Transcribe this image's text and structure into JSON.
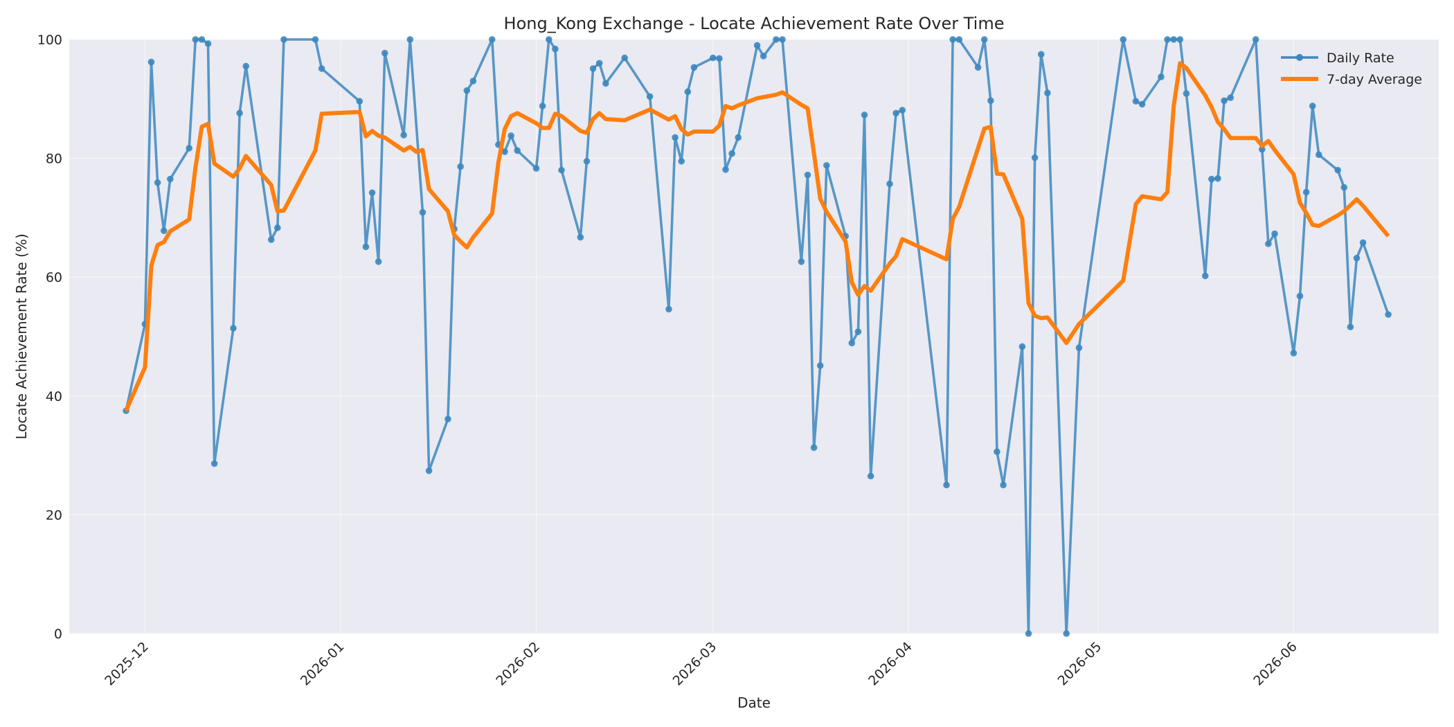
{
  "chart_data": {
    "type": "line",
    "title": "Hong_Kong Exchange - Locate Achievement Rate Over Time",
    "xlabel": "Date",
    "ylabel": "Locate Achievement Rate (%)",
    "ylim": [
      0,
      100
    ],
    "xlim": [
      "2025-11-19",
      "2026-06-24"
    ],
    "x_ticks": [
      {
        "date": "2025-12-01",
        "label": "2025-12"
      },
      {
        "date": "2026-01-01",
        "label": "2026-01"
      },
      {
        "date": "2026-02-01",
        "label": "2026-02"
      },
      {
        "date": "2026-03-01",
        "label": "2026-03"
      },
      {
        "date": "2026-04-01",
        "label": "2026-04"
      },
      {
        "date": "2026-05-01",
        "label": "2026-05"
      },
      {
        "date": "2026-06-01",
        "label": "2026-06"
      }
    ],
    "y_ticks": [
      0,
      20,
      40,
      60,
      80,
      100
    ],
    "grid": true,
    "legend_position": "top-right",
    "series": [
      {
        "name": "Daily Rate",
        "color": "#3c87be",
        "style": "line-markers",
        "points": [
          [
            "2025-11-28",
            37.5
          ],
          [
            "2025-12-01",
            52.1
          ],
          [
            "2025-12-02",
            96.2
          ],
          [
            "2025-12-03",
            75.9
          ],
          [
            "2025-12-04",
            67.8
          ],
          [
            "2025-12-05",
            76.5
          ],
          [
            "2025-12-08",
            81.7
          ],
          [
            "2025-12-09",
            100
          ],
          [
            "2025-12-10",
            100
          ],
          [
            "2025-12-11",
            99.3
          ],
          [
            "2025-12-12",
            28.6
          ],
          [
            "2025-12-15",
            51.4
          ],
          [
            "2025-12-16",
            87.6
          ],
          [
            "2025-12-17",
            95.5
          ],
          [
            "2025-12-21",
            66.3
          ],
          [
            "2025-12-22",
            68.3
          ],
          [
            "2025-12-23",
            100
          ],
          [
            "2025-12-28",
            100
          ],
          [
            "2025-12-29",
            95.1
          ],
          [
            "2026-01-04",
            89.6
          ],
          [
            "2026-01-05",
            65.1
          ],
          [
            "2026-01-06",
            74.2
          ],
          [
            "2026-01-07",
            62.6
          ],
          [
            "2026-01-08",
            97.7
          ],
          [
            "2026-01-11",
            83.9
          ],
          [
            "2026-01-12",
            100
          ],
          [
            "2026-01-14",
            70.9
          ],
          [
            "2026-01-15",
            27.4
          ],
          [
            "2026-01-18",
            36.1
          ],
          [
            "2026-01-19",
            68.1
          ],
          [
            "2026-01-20",
            78.6
          ],
          [
            "2026-01-21",
            91.4
          ],
          [
            "2026-01-22",
            93.0
          ],
          [
            "2026-01-25",
            100
          ],
          [
            "2026-01-26",
            82.3
          ],
          [
            "2026-01-27",
            81.1
          ],
          [
            "2026-01-28",
            83.8
          ],
          [
            "2026-01-29",
            81.3
          ],
          [
            "2026-02-01",
            78.3
          ],
          [
            "2026-02-02",
            88.8
          ],
          [
            "2026-02-03",
            100
          ],
          [
            "2026-02-04",
            98.4
          ],
          [
            "2026-02-05",
            78.0
          ],
          [
            "2026-02-08",
            66.7
          ],
          [
            "2026-02-09",
            79.5
          ],
          [
            "2026-02-10",
            95.1
          ],
          [
            "2026-02-11",
            96.0
          ],
          [
            "2026-02-12",
            92.6
          ],
          [
            "2026-02-15",
            96.9
          ],
          [
            "2026-02-19",
            90.4
          ],
          [
            "2026-02-22",
            54.6
          ],
          [
            "2026-02-23",
            83.5
          ],
          [
            "2026-02-24",
            79.5
          ],
          [
            "2026-02-25",
            91.2
          ],
          [
            "2026-02-26",
            95.3
          ],
          [
            "2026-03-01",
            96.9
          ],
          [
            "2026-03-02",
            96.8
          ],
          [
            "2026-03-03",
            78.1
          ],
          [
            "2026-03-04",
            80.8
          ],
          [
            "2026-03-05",
            83.5
          ],
          [
            "2026-03-08",
            99.0
          ],
          [
            "2026-03-09",
            97.2
          ],
          [
            "2026-03-11",
            100
          ],
          [
            "2026-03-12",
            100
          ],
          [
            "2026-03-15",
            62.6
          ],
          [
            "2026-03-16",
            77.2
          ],
          [
            "2026-03-17",
            31.3
          ],
          [
            "2026-03-18",
            45.1
          ],
          [
            "2026-03-19",
            78.8
          ],
          [
            "2026-03-22",
            66.9
          ],
          [
            "2026-03-23",
            48.9
          ],
          [
            "2026-03-24",
            50.8
          ],
          [
            "2026-03-25",
            87.3
          ],
          [
            "2026-03-26",
            26.5
          ],
          [
            "2026-03-29",
            75.7
          ],
          [
            "2026-03-30",
            87.6
          ],
          [
            "2026-03-31",
            88.1
          ],
          [
            "2026-04-07",
            25.0
          ],
          [
            "2026-04-08",
            100
          ],
          [
            "2026-04-09",
            100
          ],
          [
            "2026-04-12",
            95.3
          ],
          [
            "2026-04-13",
            100
          ],
          [
            "2026-04-14",
            89.7
          ],
          [
            "2026-04-15",
            30.6
          ],
          [
            "2026-04-16",
            25.0
          ],
          [
            "2026-04-19",
            48.3
          ],
          [
            "2026-04-20",
            0
          ],
          [
            "2026-04-21",
            80.1
          ],
          [
            "2026-04-22",
            97.5
          ],
          [
            "2026-04-23",
            91.0
          ],
          [
            "2026-04-26",
            0
          ],
          [
            "2026-04-28",
            48.1
          ],
          [
            "2026-05-05",
            100
          ],
          [
            "2026-05-07",
            89.6
          ],
          [
            "2026-05-08",
            89.1
          ],
          [
            "2026-05-11",
            93.7
          ],
          [
            "2026-05-12",
            100
          ],
          [
            "2026-05-13",
            100
          ],
          [
            "2026-05-14",
            100
          ],
          [
            "2026-05-15",
            90.9
          ],
          [
            "2026-05-18",
            60.2
          ],
          [
            "2026-05-19",
            76.5
          ],
          [
            "2026-05-20",
            76.6
          ],
          [
            "2026-05-21",
            89.7
          ],
          [
            "2026-05-22",
            90.2
          ],
          [
            "2026-05-26",
            100
          ],
          [
            "2026-05-27",
            81.5
          ],
          [
            "2026-05-28",
            65.6
          ],
          [
            "2026-05-29",
            67.3
          ],
          [
            "2026-06-01",
            47.2
          ],
          [
            "2026-06-02",
            56.8
          ],
          [
            "2026-06-03",
            74.3
          ],
          [
            "2026-06-04",
            88.8
          ],
          [
            "2026-06-05",
            80.6
          ],
          [
            "2026-06-08",
            78.0
          ],
          [
            "2026-06-09",
            75.1
          ],
          [
            "2026-06-10",
            51.6
          ],
          [
            "2026-06-11",
            63.2
          ],
          [
            "2026-06-12",
            65.8
          ],
          [
            "2026-06-16",
            53.7
          ]
        ]
      },
      {
        "name": "7-day Average",
        "color": "#ff7f0e",
        "style": "line",
        "points": [
          [
            "2025-11-28",
            37.5
          ],
          [
            "2025-12-01",
            44.8
          ],
          [
            "2025-12-02",
            61.9
          ],
          [
            "2025-12-03",
            65.4
          ],
          [
            "2025-12-04",
            65.9
          ],
          [
            "2025-12-05",
            67.7
          ],
          [
            "2025-12-08",
            69.7
          ],
          [
            "2025-12-09",
            78.4
          ],
          [
            "2025-12-10",
            85.3
          ],
          [
            "2025-12-11",
            85.8
          ],
          [
            "2025-12-12",
            79.1
          ],
          [
            "2025-12-15",
            76.9
          ],
          [
            "2025-12-16",
            78.3
          ],
          [
            "2025-12-17",
            80.4
          ],
          [
            "2025-12-21",
            75.5
          ],
          [
            "2025-12-22",
            71.1
          ],
          [
            "2025-12-23",
            71.2
          ],
          [
            "2025-12-28",
            81.3
          ],
          [
            "2025-12-29",
            87.5
          ],
          [
            "2026-01-04",
            87.8
          ],
          [
            "2026-01-05",
            83.7
          ],
          [
            "2026-01-06",
            84.6
          ],
          [
            "2026-01-07",
            83.8
          ],
          [
            "2026-01-08",
            83.5
          ],
          [
            "2026-01-11",
            81.3
          ],
          [
            "2026-01-12",
            81.9
          ],
          [
            "2026-01-13",
            81.1
          ],
          [
            "2026-01-14",
            81.4
          ],
          [
            "2026-01-15",
            74.8
          ],
          [
            "2026-01-18",
            71.1
          ],
          [
            "2026-01-19",
            67.1
          ],
          [
            "2026-01-20",
            66.0
          ],
          [
            "2026-01-21",
            65.0
          ],
          [
            "2026-01-22",
            66.7
          ],
          [
            "2026-01-25",
            70.7
          ],
          [
            "2026-01-26",
            79.3
          ],
          [
            "2026-01-27",
            84.9
          ],
          [
            "2026-01-28",
            87.1
          ],
          [
            "2026-01-29",
            87.6
          ],
          [
            "2026-02-01",
            85.9
          ],
          [
            "2026-02-02",
            85.1
          ],
          [
            "2026-02-03",
            85.1
          ],
          [
            "2026-02-04",
            87.5
          ],
          [
            "2026-02-05",
            87.1
          ],
          [
            "2026-02-08",
            84.6
          ],
          [
            "2026-02-09",
            84.3
          ],
          [
            "2026-02-10",
            86.6
          ],
          [
            "2026-02-11",
            87.6
          ],
          [
            "2026-02-12",
            86.6
          ],
          [
            "2026-02-15",
            86.4
          ],
          [
            "2026-02-19",
            88.2
          ],
          [
            "2026-02-22",
            86.5
          ],
          [
            "2026-02-23",
            87.1
          ],
          [
            "2026-02-24",
            84.9
          ],
          [
            "2026-02-25",
            84.0
          ],
          [
            "2026-02-26",
            84.5
          ],
          [
            "2026-03-01",
            84.5
          ],
          [
            "2026-03-02",
            85.5
          ],
          [
            "2026-03-03",
            88.8
          ],
          [
            "2026-03-04",
            88.4
          ],
          [
            "2026-03-05",
            88.9
          ],
          [
            "2026-03-08",
            90.1
          ],
          [
            "2026-03-09",
            90.3
          ],
          [
            "2026-03-11",
            90.7
          ],
          [
            "2026-03-12",
            91.1
          ],
          [
            "2026-03-15",
            89.0
          ],
          [
            "2026-03-16",
            88.4
          ],
          [
            "2026-03-18",
            73.2
          ],
          [
            "2026-03-19",
            71.0
          ],
          [
            "2026-03-22",
            66.0
          ],
          [
            "2026-03-23",
            59.1
          ],
          [
            "2026-03-24",
            57.0
          ],
          [
            "2026-03-25",
            58.5
          ],
          [
            "2026-03-26",
            57.7
          ],
          [
            "2026-03-29",
            62.3
          ],
          [
            "2026-03-30",
            63.5
          ],
          [
            "2026-03-31",
            66.4
          ],
          [
            "2026-04-07",
            63.0
          ],
          [
            "2026-04-08",
            69.8
          ],
          [
            "2026-04-09",
            71.8
          ],
          [
            "2026-04-13",
            85.0
          ],
          [
            "2026-04-14",
            85.3
          ],
          [
            "2026-04-15",
            77.4
          ],
          [
            "2026-04-16",
            77.3
          ],
          [
            "2026-04-19",
            69.8
          ],
          [
            "2026-04-20",
            55.6
          ],
          [
            "2026-04-21",
            53.5
          ],
          [
            "2026-04-22",
            53.1
          ],
          [
            "2026-04-23",
            53.2
          ],
          [
            "2026-04-26",
            48.9
          ],
          [
            "2026-04-28",
            52.1
          ],
          [
            "2026-05-05",
            59.4
          ],
          [
            "2026-05-07",
            72.3
          ],
          [
            "2026-05-08",
            73.6
          ],
          [
            "2026-05-11",
            73.1
          ],
          [
            "2026-05-12",
            74.3
          ],
          [
            "2026-05-13",
            88.8
          ],
          [
            "2026-05-14",
            96.0
          ],
          [
            "2026-05-15",
            95.2
          ],
          [
            "2026-05-18",
            90.6
          ],
          [
            "2026-05-19",
            88.6
          ],
          [
            "2026-05-20",
            86.1
          ],
          [
            "2026-05-21",
            84.9
          ],
          [
            "2026-05-22",
            83.4
          ],
          [
            "2026-05-26",
            83.4
          ],
          [
            "2026-05-27",
            82.1
          ],
          [
            "2026-05-28",
            82.9
          ],
          [
            "2026-05-29",
            81.4
          ],
          [
            "2026-06-01",
            77.3
          ],
          [
            "2026-06-02",
            72.5
          ],
          [
            "2026-06-03",
            70.8
          ],
          [
            "2026-06-04",
            68.8
          ],
          [
            "2026-06-05",
            68.6
          ],
          [
            "2026-06-08",
            70.4
          ],
          [
            "2026-06-09",
            71.1
          ],
          [
            "2026-06-10",
            72.1
          ],
          [
            "2026-06-11",
            73.1
          ],
          [
            "2026-06-12",
            72.0
          ],
          [
            "2026-06-16",
            66.9
          ]
        ]
      }
    ]
  }
}
